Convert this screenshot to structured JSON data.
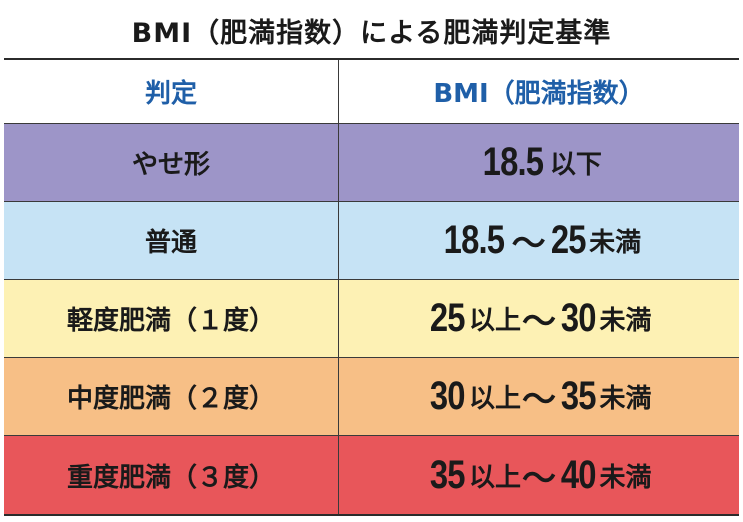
{
  "title": "BMI（肥満指数）による肥満判定基準",
  "header": {
    "col1": "判定",
    "col2": "BMI（肥満指数）"
  },
  "rows": [
    {
      "label": "やせ形",
      "color": "#9d95c8",
      "value": {
        "num1": "18.5",
        "unit1": "以下",
        "tilde": "",
        "num2": "",
        "unit2": ""
      }
    },
    {
      "label": "普通",
      "color": "#c6e3f5",
      "value": {
        "num1": "18.5",
        "unit1": "",
        "tilde": "〜",
        "num2": "25",
        "unit2": "未満"
      }
    },
    {
      "label": "軽度肥満（１度）",
      "color": "#fdf1b4",
      "value": {
        "num1": "25",
        "unit1": "以上",
        "tilde": "〜",
        "num2": "30",
        "unit2": "未満"
      }
    },
    {
      "label": "中度肥満（２度）",
      "color": "#f7bf86",
      "value": {
        "num1": "30",
        "unit1": "以上",
        "tilde": "〜",
        "num2": "35",
        "unit2": "未満"
      }
    },
    {
      "label": "重度肥満（３度）",
      "color": "#e8565a",
      "value": {
        "num1": "35",
        "unit1": "以上",
        "tilde": "〜",
        "num2": "40",
        "unit2": "未満"
      }
    }
  ]
}
